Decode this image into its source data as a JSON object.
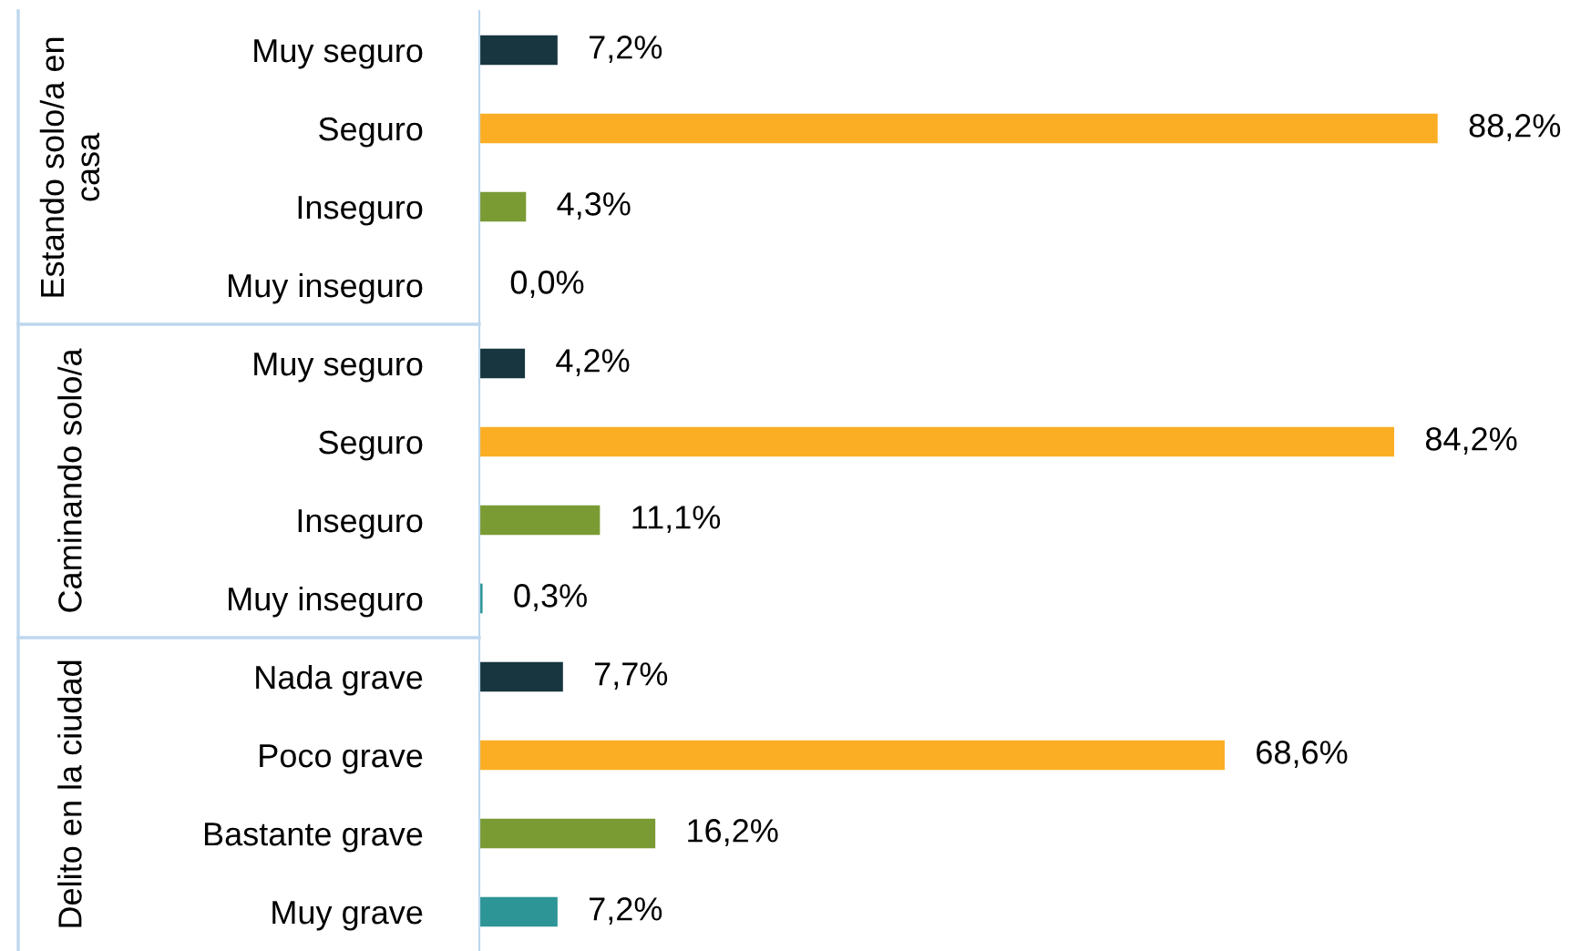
{
  "chart_data": {
    "type": "bar",
    "orientation": "horizontal",
    "categories": [
      "Muy seguro",
      "Seguro",
      "Inseguro",
      "Muy inseguro",
      "Muy seguro",
      "Seguro",
      "Inseguro",
      "Muy inseguro",
      "Nada grave",
      "Poco grave",
      "Bastante grave",
      "Muy grave"
    ],
    "values": [
      7.2,
      88.2,
      4.3,
      0.0,
      4.2,
      84.2,
      11.1,
      0.3,
      7.7,
      68.6,
      16.2,
      7.2
    ],
    "colors": [
      "#17363f",
      "#fbae24",
      "#7a9a34",
      "#2e9596",
      "#17363f",
      "#fbae24",
      "#7a9a34",
      "#2e9596",
      "#17363f",
      "#fbae24",
      "#7a9a34",
      "#2e9596"
    ],
    "value_labels": [
      "7,2%",
      "88,2%",
      "4,3%",
      "0,0%",
      "4,2%",
      "84,2%",
      "11,1%",
      "0,3%",
      "7,7%",
      "68,6%",
      "16,2%",
      "7,2%"
    ],
    "annotations": [
      "Estando solo/a en casa",
      "Caminando solo/a",
      "Delito en la ciudad"
    ],
    "grid": false,
    "legend": false
  }
}
